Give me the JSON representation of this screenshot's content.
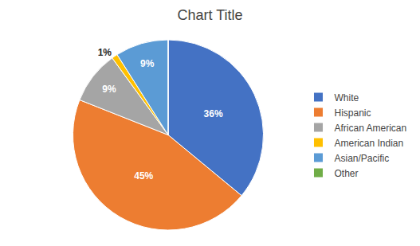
{
  "chart_data": {
    "type": "pie",
    "title": "Chart Title",
    "categories": [
      "White",
      "Hispanic",
      "African American",
      "American Indian",
      "Asian/Pacific",
      "Other"
    ],
    "values": [
      36,
      45,
      9,
      1,
      9,
      0
    ],
    "value_labels": [
      "36%",
      "45%",
      "9%",
      "1%",
      "9%",
      null
    ],
    "colors": [
      "#4472C4",
      "#ED7D31",
      "#A5A5A5",
      "#FFC000",
      "#5B9BD5",
      "#70AD47"
    ],
    "data_labels": true,
    "legend": "right"
  }
}
